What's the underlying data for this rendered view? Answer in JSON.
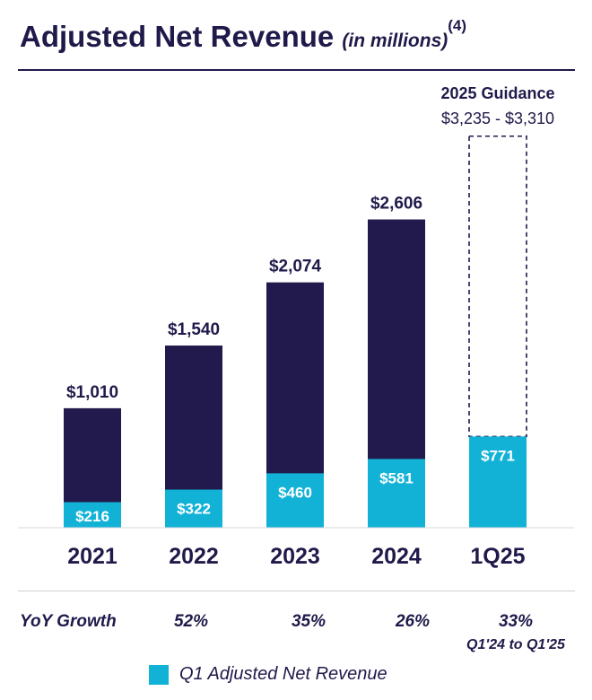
{
  "title": {
    "main": "Adjusted Net Revenue",
    "sub": "(in millions)",
    "footnote": "(4)"
  },
  "colors": {
    "annual": "#221a4c",
    "q1": "#12b2d6",
    "guidance_border": "#221a4c",
    "text": "#1f1a4a"
  },
  "chart_data": {
    "type": "bar",
    "stacked": true,
    "categories": [
      "2021",
      "2022",
      "2023",
      "2024",
      "1Q25"
    ],
    "series": [
      {
        "name": "",
        "values": [
          1010,
          1540,
          2074,
          2606,
          null
        ],
        "labels": [
          "$1,010",
          "$1,540",
          "$2,074",
          "$2,606",
          ""
        ]
      },
      {
        "name": "Q1 Adjusted Net Revenue",
        "values": [
          216,
          322,
          460,
          581,
          771
        ],
        "labels": [
          "$216",
          "$322",
          "$460",
          "$581",
          "$771"
        ]
      }
    ],
    "guidance": {
      "category": "1Q25",
      "title": "2025 Guidance",
      "range_label": "$3,235 - $3,310",
      "low": 3235,
      "high": 3310
    },
    "ylim": [
      0,
      3310
    ],
    "grid": false
  },
  "growth": {
    "label": "YoY Growth",
    "values": [
      "52%",
      "35%",
      "26%",
      "33%"
    ],
    "note": "Q1'24 to Q1'25"
  },
  "legend": {
    "label": "Q1 Adjusted Net Revenue"
  }
}
